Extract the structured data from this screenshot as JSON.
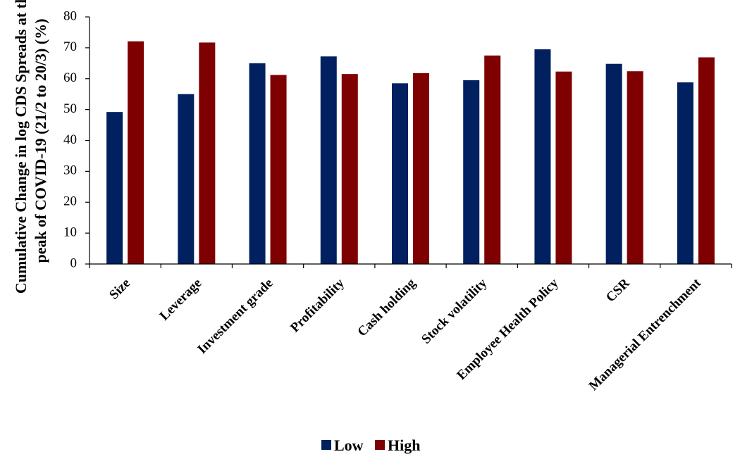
{
  "chart_data": {
    "type": "bar",
    "title": "",
    "xlabel": "",
    "ylabel_lines": [
      "Cumulative Change in log CDS Spreads at the",
      "peak of COVID-19 (21/2 to 20/3) (%)"
    ],
    "ylim": [
      0,
      80
    ],
    "yticks": [
      0,
      10,
      20,
      30,
      40,
      50,
      60,
      70,
      80
    ],
    "grid": false,
    "legend_position": "bottom-center",
    "categories": [
      "Size",
      "Leverage",
      "Investment grade",
      "Profitability",
      "Cash holding",
      "Stock volatility",
      "Employee Health Policy",
      "CSR",
      "Managerial Entrenchment"
    ],
    "series": [
      {
        "name": "Low",
        "color": "#002060",
        "values": [
          49.2,
          55.0,
          65.0,
          67.2,
          58.5,
          59.5,
          69.5,
          64.8,
          58.8
        ]
      },
      {
        "name": "High",
        "color": "#7F0000",
        "values": [
          72.1,
          71.7,
          61.2,
          61.5,
          61.8,
          67.5,
          62.3,
          62.4,
          66.9
        ]
      }
    ]
  }
}
